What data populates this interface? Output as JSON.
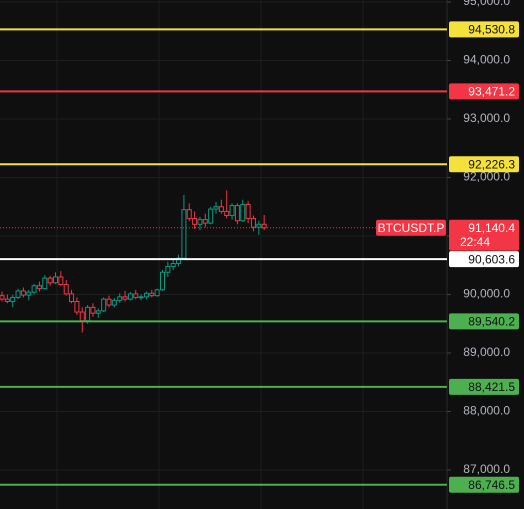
{
  "chart_data": {
    "type": "candlestick",
    "symbol": "BTCUSDT.P",
    "ylim": [
      86333,
      95034
    ],
    "yticks": [
      {
        "value": 95000,
        "label": "95,000.0"
      },
      {
        "value": 94000,
        "label": "94,000.0"
      },
      {
        "value": 93000,
        "label": "93,000.0"
      },
      {
        "value": 92000,
        "label": "92,000.0"
      },
      {
        "value": 91000,
        "label": "91,000.0"
      },
      {
        "value": 90000,
        "label": "90,000.0"
      },
      {
        "value": 89000,
        "label": "89,000.0"
      },
      {
        "value": 88000,
        "label": "88,000.0"
      },
      {
        "value": 87000,
        "label": "87,000.0"
      }
    ],
    "grid": true,
    "up_color": "#089981",
    "down_color": "#f23645",
    "open": [
      89980,
      89920,
      89880,
      89950,
      90060,
      89990,
      90040,
      90150,
      90100,
      90280,
      90200,
      90300,
      90170,
      90010,
      89880,
      89700,
      89550,
      89780,
      89680,
      89720,
      89920,
      89820,
      89900,
      89960,
      89920,
      90010,
      89950,
      89960,
      90020,
      89980,
      90080,
      90380,
      90480,
      90530,
      90620,
      91450,
      91300,
      91200,
      91280,
      91220,
      91460,
      91500,
      91420,
      91350,
      91520,
      91260,
      91540,
      91300,
      91150,
      91200
    ],
    "high": [
      90050,
      90000,
      89990,
      90100,
      90120,
      90080,
      90180,
      90220,
      90330,
      90320,
      90380,
      90400,
      90250,
      90080,
      89950,
      89780,
      89820,
      89850,
      89760,
      89950,
      89980,
      89940,
      90020,
      90060,
      90040,
      90080,
      90000,
      90050,
      90080,
      90100,
      90420,
      90560,
      90600,
      90680,
      91700,
      91560,
      91420,
      91330,
      91380,
      91500,
      91580,
      91620,
      91780,
      91560,
      91560,
      91620,
      91600,
      91350,
      91260,
      91360
    ],
    "low": [
      89880,
      89850,
      89780,
      89920,
      89950,
      89900,
      90000,
      90050,
      90080,
      90150,
      90180,
      90150,
      89980,
      89850,
      89650,
      89350,
      89500,
      89620,
      89600,
      89700,
      89780,
      89780,
      89860,
      89880,
      89900,
      89920,
      89900,
      89920,
      89950,
      89960,
      90060,
      90300,
      90420,
      90480,
      90600,
      91250,
      91120,
      91100,
      91150,
      91200,
      91380,
      91380,
      91300,
      91280,
      91200,
      91240,
      91220,
      91080,
      91020,
      91100
    ],
    "close": [
      89920,
      89880,
      89950,
      90060,
      89990,
      90040,
      90150,
      90100,
      90280,
      90200,
      90300,
      90170,
      90010,
      89880,
      89700,
      89550,
      89780,
      89680,
      89720,
      89920,
      89820,
      89900,
      89960,
      89920,
      90010,
      89950,
      89960,
      90020,
      89980,
      90080,
      90380,
      90480,
      90530,
      90620,
      91450,
      91300,
      91200,
      91280,
      91220,
      91460,
      91500,
      91420,
      91350,
      91520,
      91260,
      91540,
      91300,
      91150,
      91200,
      91140.4
    ],
    "levels": [
      {
        "value": 94530.8,
        "label": "94,530.8",
        "color": "#f5e13c",
        "text_color": "#111111"
      },
      {
        "value": 93471.2,
        "label": "93,471.2",
        "color": "#f23645",
        "text_color": "#ffffff"
      },
      {
        "value": 92226.3,
        "label": "92,226.3",
        "color": "#f5e13c",
        "text_color": "#111111"
      },
      {
        "value": 90603.6,
        "label": "90,603.6",
        "color": "#ffffff",
        "text_color": "#111111"
      },
      {
        "value": 89540.2,
        "label": "89,540.2",
        "color": "#4caf50",
        "text_color": "#111111"
      },
      {
        "value": 88421.5,
        "label": "88,421.5",
        "color": "#4caf50",
        "text_color": "#111111"
      },
      {
        "value": 86746.5,
        "label": "86,746.5",
        "color": "#4caf50",
        "text_color": "#111111"
      }
    ],
    "price": {
      "value": 91140.4,
      "label": "91,140.4",
      "countdown": "22:44",
      "color": "#f23645"
    }
  }
}
